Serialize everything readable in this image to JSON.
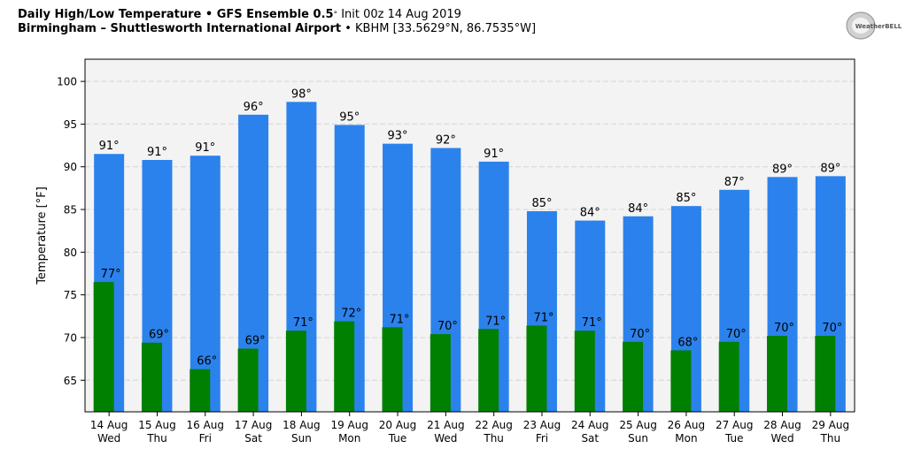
{
  "header": {
    "title_bold": "Daily High/Low Temperature • GFS Ensemble 0.5",
    "title_deg": "°",
    "title_rest": " Init 00z 14 Aug 2019",
    "loc_bold": "Birmingham – Shuttlesworth International Airport",
    "loc_rest": " • KBHM [33.5629°N, 86.7535°W]"
  },
  "logo": {
    "text": "WeatherBELL",
    "icon": "weatherbell-logo"
  },
  "chart_data": {
    "type": "bar",
    "ylabel": "Temperature [°F]",
    "ylim": [
      61.3,
      102.6
    ],
    "yticks": [
      65,
      70,
      75,
      80,
      85,
      90,
      95,
      100
    ],
    "grid": true,
    "categories": [
      [
        "14 Aug",
        "Wed"
      ],
      [
        "15 Aug",
        "Thu"
      ],
      [
        "16 Aug",
        "Fri"
      ],
      [
        "17 Aug",
        "Sat"
      ],
      [
        "18 Aug",
        "Sun"
      ],
      [
        "19 Aug",
        "Mon"
      ],
      [
        "20 Aug",
        "Tue"
      ],
      [
        "21 Aug",
        "Wed"
      ],
      [
        "22 Aug",
        "Thu"
      ],
      [
        "23 Aug",
        "Fri"
      ],
      [
        "24 Aug",
        "Sat"
      ],
      [
        "25 Aug",
        "Sun"
      ],
      [
        "26 Aug",
        "Mon"
      ],
      [
        "27 Aug",
        "Tue"
      ],
      [
        "28 Aug",
        "Wed"
      ],
      [
        "29 Aug",
        "Thu"
      ]
    ],
    "series": [
      {
        "key": "high",
        "color": "#2b82ec",
        "values": [
          91.5,
          90.8,
          91.3,
          96.1,
          97.6,
          94.9,
          92.7,
          92.2,
          90.6,
          84.8,
          83.7,
          84.2,
          85.4,
          87.3,
          88.8,
          88.9
        ],
        "labels": [
          "91°",
          "91°",
          "91°",
          "96°",
          "98°",
          "95°",
          "93°",
          "92°",
          "91°",
          "85°",
          "84°",
          "84°",
          "85°",
          "87°",
          "89°",
          "89°"
        ]
      },
      {
        "key": "low",
        "color": "#008000",
        "values": [
          76.5,
          69.4,
          66.3,
          68.7,
          70.8,
          71.9,
          71.2,
          70.4,
          71.0,
          71.4,
          70.8,
          69.5,
          68.5,
          69.5,
          70.2,
          70.2
        ],
        "labels": [
          "77°",
          "69°",
          "66°",
          "69°",
          "71°",
          "72°",
          "71°",
          "70°",
          "71°",
          "71°",
          "71°",
          "70°",
          "68°",
          "70°",
          "70°",
          "70°"
        ]
      }
    ]
  }
}
